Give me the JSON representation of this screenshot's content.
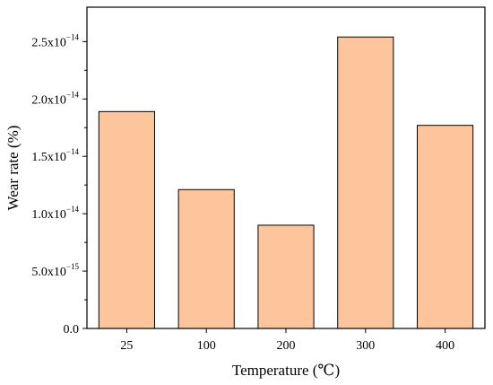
{
  "chart_data": {
    "type": "bar",
    "xlabel": "Temperature (℃)",
    "ylabel": "Wear rate (%)",
    "categories": [
      "25",
      "100",
      "200",
      "300",
      "400"
    ],
    "values": [
      1.89e-14,
      1.21e-14,
      9e-15,
      2.54e-14,
      1.77e-14
    ],
    "ylim": [
      0,
      2.8e-14
    ],
    "yticks": [
      {
        "value": 0,
        "mantissa": "0.0",
        "exponent": ""
      },
      {
        "value": 5e-15,
        "mantissa": "5.0x10",
        "exponent": "−15"
      },
      {
        "value": 1e-14,
        "mantissa": "1.0x10",
        "exponent": "−14"
      },
      {
        "value": 1.5e-14,
        "mantissa": "1.5x10",
        "exponent": "−14"
      },
      {
        "value": 2e-14,
        "mantissa": "2.0x10",
        "exponent": "−14"
      },
      {
        "value": 2.5e-14,
        "mantissa": "2.5x10",
        "exponent": "−14"
      }
    ],
    "bar_color": "#fdc59b",
    "bar_edge_color": "#000000",
    "grid": false,
    "legend": "none"
  }
}
